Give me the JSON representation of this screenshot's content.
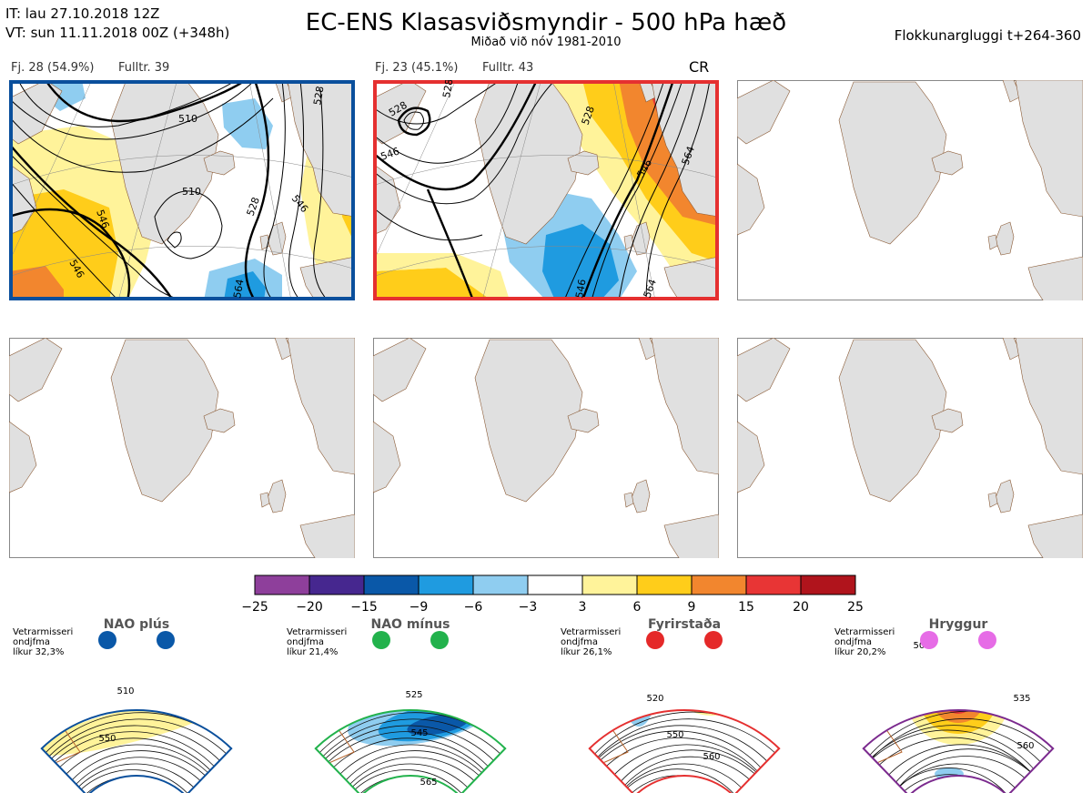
{
  "header": {
    "it": "IT: lau 27.10.2018 12Z",
    "vt": "VT: sun 11.11.2018 00Z  (+348h)",
    "title": "EC-ENS Klasasviðsmyndir - 500 hPa hæð",
    "subtitle": "Miðað við nóv 1981-2010",
    "window": "Flokkunargluggi t+264-360"
  },
  "panels": [
    {
      "count": "Fj. 28 (54.9%)",
      "rep": "Fulltr. 39",
      "border": "#0a4f9c",
      "contours": [
        "510",
        "510",
        "528",
        "528",
        "546",
        "546",
        "546",
        "564"
      ]
    },
    {
      "count": "Fj. 23 (45.1%)",
      "rep": "Fulltr. 43",
      "border": "#e53030",
      "tag": "CR",
      "contours": [
        "528",
        "528",
        "546",
        "528",
        "546",
        "564",
        "546",
        "564"
      ]
    }
  ],
  "colorbar": {
    "colors": [
      "#8e3f9b",
      "#46278f",
      "#0a58a8",
      "#1f9be0",
      "#8fcdf0",
      "#ffffff",
      "#fff39a",
      "#ffcd1a",
      "#f2862e",
      "#e83535",
      "#b0141c"
    ],
    "ticks": [
      "−25",
      "−20",
      "−15",
      "−9",
      "−6",
      "−3",
      "3",
      "6",
      "9",
      "15",
      "20",
      "25"
    ]
  },
  "regimes": [
    {
      "name": "NAO plús",
      "color": "#0a58a8",
      "frame": "#0a4f9c",
      "winter": "Vetrarmisseri",
      "method": "ondjfma",
      "prob": "líkur 32,3%",
      "labels": [
        "510",
        "550"
      ]
    },
    {
      "name": "NAO mínus",
      "color": "#22b24c",
      "frame": "#22b24c",
      "winter": "Vetrarmisseri",
      "method": "ondjfma",
      "prob": "líkur 21,4%",
      "labels": [
        "525",
        "545",
        "565"
      ]
    },
    {
      "name": "Fyrirstaða",
      "color": "#e52929",
      "frame": "#e53030",
      "winter": "Vetrarmisseri",
      "method": "ondjfma",
      "prob": "líkur 26,1%",
      "labels": [
        "520",
        "550",
        "560"
      ]
    },
    {
      "name": "Hryggur",
      "color": "#e66ce6",
      "frame": "#7b2a8e",
      "winter": "Vetrarmisseri",
      "method": "ondjfma",
      "prob": "líkur 20,2%",
      "labels": [
        "505",
        "535",
        "560"
      ]
    }
  ]
}
